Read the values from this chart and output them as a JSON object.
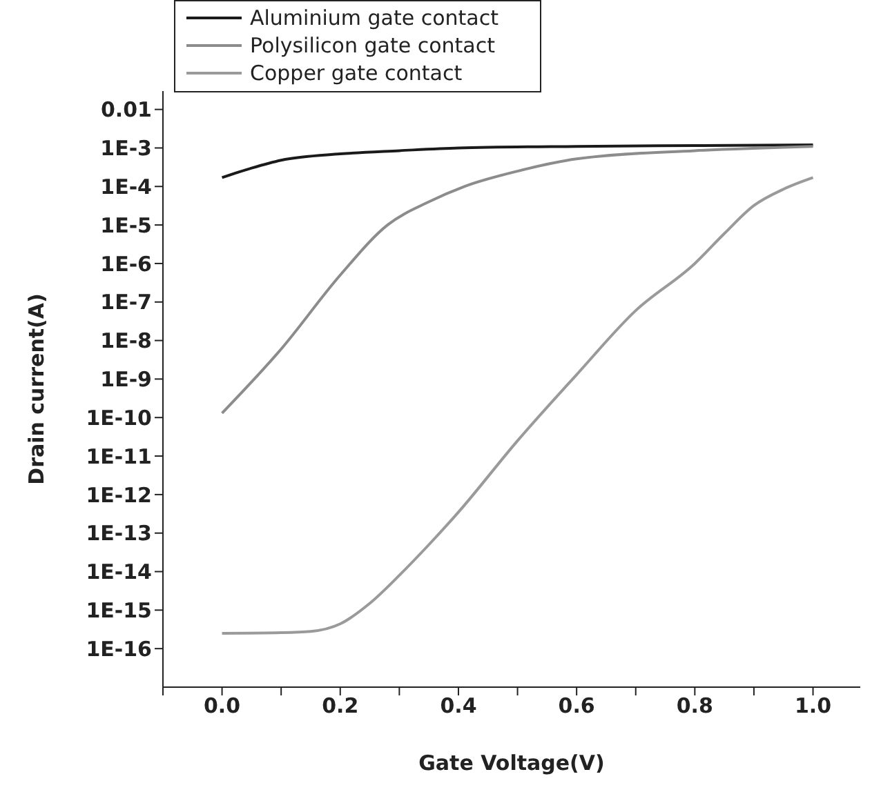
{
  "chart_data": {
    "type": "line",
    "xlabel": "Gate Voltage(V)",
    "ylabel": "Drain current(A)",
    "log": "y",
    "grid": false,
    "legend": "top left",
    "marker": "none",
    "line_style": "solid",
    "xlim": [
      -0.1,
      1.08
    ],
    "xticks": [
      {
        "value": -0.1,
        "label": null
      },
      {
        "value": 0,
        "label": "0.0"
      },
      {
        "value": 0.1,
        "label": null
      },
      {
        "value": 0.2,
        "label": "0.2"
      },
      {
        "value": 0.3,
        "label": null
      },
      {
        "value": 0.4,
        "label": "0.4"
      },
      {
        "value": 0.5,
        "label": null
      },
      {
        "value": 0.6,
        "label": "0.6"
      },
      {
        "value": 0.7,
        "label": null
      },
      {
        "value": 0.8,
        "label": "0.8"
      },
      {
        "value": 0.9,
        "label": null
      },
      {
        "value": 1.0,
        "label": "1.0"
      }
    ],
    "ylim": [
      1e-17,
      0.03
    ],
    "yticks": [
      0.01,
      {
        "value": 0.001,
        "label": "1E-3"
      },
      {
        "value": 0.0001,
        "label": "1E-4"
      },
      {
        "value": 1e-05,
        "label": "1E-5"
      },
      {
        "value": 1e-06,
        "label": "1E-6"
      },
      {
        "value": 1e-07,
        "label": "1E-7"
      },
      {
        "value": 1e-08,
        "label": "1E-8"
      },
      {
        "value": 1e-09,
        "label": "1E-9"
      },
      {
        "value": 1e-10,
        "label": "1E-10"
      },
      {
        "value": 1e-11,
        "label": "1E-11"
      },
      {
        "value": 1e-12,
        "label": "1E-12"
      },
      {
        "value": 1e-13,
        "label": "1E-13"
      },
      {
        "value": 1e-14,
        "label": "1E-14"
      },
      {
        "value": 1e-15,
        "label": "1E-15"
      },
      {
        "value": 1e-16,
        "label": "1E-16"
      }
    ],
    "series": [
      {
        "name": "Aluminium gate contact",
        "color": "#1a1a1a",
        "x": [
          0,
          0.05,
          0.1,
          0.2,
          0.3,
          0.4,
          0.6,
          0.8,
          1.0
        ],
        "values": [
          0.00017,
          0.0003,
          0.00048,
          0.0007,
          0.00085,
          0.001,
          0.0011,
          0.00115,
          0.0012
        ]
      },
      {
        "name": "Polysilicon gate contact",
        "color": "#8c8c8c",
        "x": [
          0,
          0.1,
          0.2,
          0.28,
          0.35,
          0.41,
          0.5,
          0.6,
          0.8,
          1.0
        ],
        "values": [
          1.3e-10,
          6e-09,
          5e-07,
          1e-05,
          4e-05,
          0.0001,
          0.00025,
          0.00052,
          0.00085,
          0.0011
        ]
      },
      {
        "name": "Copper gate contact",
        "color": "#9a9a9a",
        "x": [
          0,
          0.1,
          0.15,
          0.2,
          0.25,
          0.3,
          0.35,
          0.4,
          0.5,
          0.6,
          0.7,
          0.8,
          0.85,
          0.9,
          0.95,
          1.0
        ],
        "values": [
          2.5e-16,
          2.6e-16,
          2.8e-16,
          4.4e-16,
          1.5e-15,
          8e-15,
          5e-14,
          3.5e-13,
          2.5e-11,
          1.3e-09,
          6e-08,
          1e-06,
          6e-06,
          3.2e-05,
          8.5e-05,
          0.00017
        ]
      }
    ]
  }
}
